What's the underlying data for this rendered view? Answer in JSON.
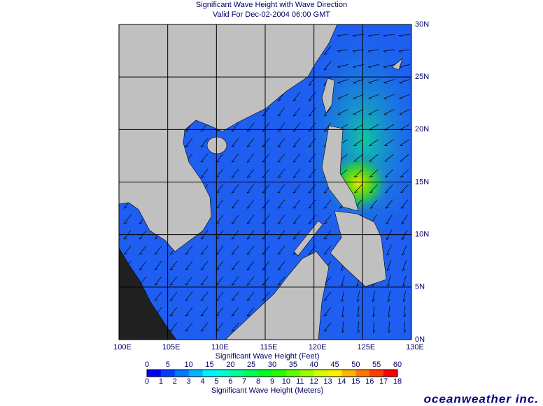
{
  "header": {
    "title": "Significant Wave Height with Wave Direction",
    "subtitle": "Valid For Dec-02-2004 06:00 GMT"
  },
  "map": {
    "lon_labels": [
      "100E",
      "105E",
      "110E",
      "115E",
      "120E",
      "125E",
      "130E"
    ],
    "lat_labels": [
      "0N",
      "5N",
      "10N",
      "15N",
      "20N",
      "25N",
      "30N"
    ]
  },
  "colorbar": {
    "feet_title": "Significant Wave Height (Feet)",
    "feet_labels": [
      "0",
      "5",
      "10",
      "15",
      "20",
      "25",
      "30",
      "35",
      "40",
      "45",
      "50",
      "55",
      "60"
    ],
    "meters_title": "Significant Wave Height (Meters)",
    "meters_labels": [
      "0",
      "1",
      "2",
      "3",
      "4",
      "5",
      "6",
      "7",
      "8",
      "9",
      "10",
      "11",
      "12",
      "13",
      "14",
      "15",
      "16",
      "17",
      "18"
    ]
  },
  "brand": "oceanweather inc."
}
